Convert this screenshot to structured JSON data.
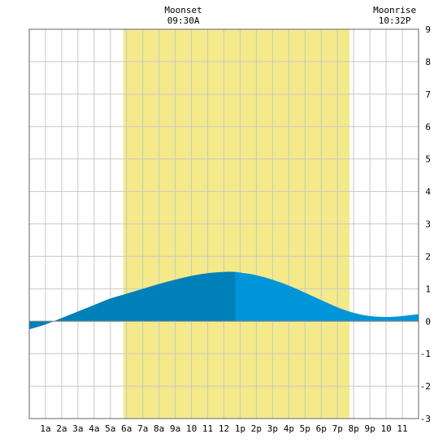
{
  "chart_data": {
    "type": "area",
    "title": "",
    "xlabel": "",
    "ylabel": "",
    "xlim": [
      0,
      24
    ],
    "ylim": [
      -3,
      9
    ],
    "y_ticks": [
      -3,
      -2,
      -1,
      0,
      1,
      2,
      3,
      4,
      5,
      6,
      7,
      8,
      9
    ],
    "x_ticks": [
      {
        "h": 1,
        "label": "1a"
      },
      {
        "h": 2,
        "label": "2a"
      },
      {
        "h": 3,
        "label": "3a"
      },
      {
        "h": 4,
        "label": "4a"
      },
      {
        "h": 5,
        "label": "5a"
      },
      {
        "h": 6,
        "label": "6a"
      },
      {
        "h": 7,
        "label": "7a"
      },
      {
        "h": 8,
        "label": "8a"
      },
      {
        "h": 9,
        "label": "9a"
      },
      {
        "h": 10,
        "label": "10"
      },
      {
        "h": 11,
        "label": "11"
      },
      {
        "h": 12,
        "label": "12"
      },
      {
        "h": 13,
        "label": "1p"
      },
      {
        "h": 14,
        "label": "2p"
      },
      {
        "h": 15,
        "label": "3p"
      },
      {
        "h": 16,
        "label": "4p"
      },
      {
        "h": 17,
        "label": "5p"
      },
      {
        "h": 18,
        "label": "6p"
      },
      {
        "h": 19,
        "label": "7p"
      },
      {
        "h": 20,
        "label": "8p"
      },
      {
        "h": 21,
        "label": "9p"
      },
      {
        "h": 22,
        "label": "10"
      },
      {
        "h": 23,
        "label": "11"
      }
    ],
    "grid": true,
    "daylight": {
      "start": 5.8,
      "end": 19.75
    },
    "annotations": [
      {
        "label": "Moonset",
        "time": "09:30A",
        "h": 9.5
      },
      {
        "label": "Moonrise",
        "time": "10:32P",
        "h": 22.53
      }
    ],
    "series": [
      {
        "x": [
          0,
          1,
          2,
          3,
          4,
          5,
          6,
          7,
          8,
          9,
          10,
          11,
          12,
          12.7,
          13,
          14,
          15,
          16,
          17,
          18,
          19,
          20,
          21,
          22,
          23,
          24
        ],
        "values": [
          -0.25,
          -0.1,
          0.1,
          0.3,
          0.5,
          0.7,
          0.85,
          1.0,
          1.15,
          1.28,
          1.4,
          1.48,
          1.52,
          1.52,
          1.5,
          1.42,
          1.28,
          1.1,
          0.88,
          0.65,
          0.43,
          0.26,
          0.16,
          0.13,
          0.16,
          0.22
        ]
      }
    ],
    "colors": {
      "daylight": "#f4ea8a",
      "tide_past": "#0080b8",
      "tide_future": "#0095d8",
      "grid": "#c8c8c8",
      "frame": "#666666"
    },
    "split_at_h": 12.7
  }
}
